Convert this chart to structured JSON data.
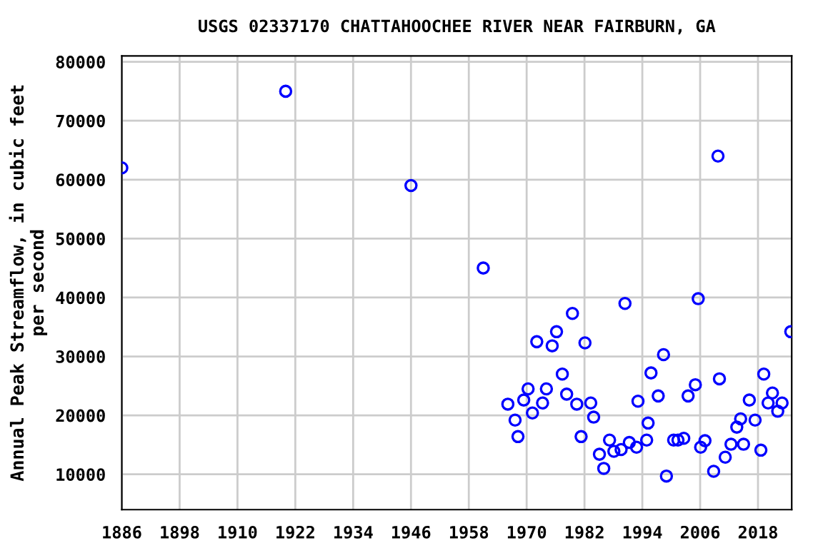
{
  "chart_data": {
    "type": "scatter",
    "title": "USGS 02337170 CHATTAHOOCHEE RIVER NEAR FAIRBURN, GA",
    "ylabel": "Annual Peak Streamflow, in cubic feet\nper second",
    "x": [
      1886,
      1920,
      1946,
      1961,
      1966.1,
      1967.6,
      1968.2,
      1969.4,
      1970.3,
      1971.2,
      1972.1,
      1973.3,
      1974.1,
      1975.3,
      1976.2,
      1977.4,
      1978.3,
      1979.5,
      1980.4,
      1981.3,
      1982.1,
      1983.3,
      1983.9,
      1985.1,
      1986.0,
      1987.2,
      1988.1,
      1989.6,
      1990.4,
      1991.3,
      1992.8,
      1993.1,
      1994.9,
      1995.2,
      1995.8,
      1997.3,
      1998.4,
      1999.0,
      2000.5,
      2001.4,
      2002.6,
      2003.5,
      2005.0,
      2005.6,
      2006.1,
      2007.0,
      2009.7,
      2008.8,
      2010.0,
      2011.2,
      2012.4,
      2013.6,
      2014.4,
      2015.0,
      2016.2,
      2017.4,
      2018.6,
      2019.2,
      2020.1,
      2021.0,
      2022.1,
      2023.0,
      2024.8
    ],
    "values": [
      62000,
      75000,
      59000,
      45000,
      21900,
      19200,
      16400,
      22600,
      24500,
      20400,
      32500,
      22100,
      24500,
      31800,
      34200,
      27000,
      23600,
      37300,
      21900,
      16400,
      32300,
      22100,
      19700,
      13400,
      11000,
      15800,
      13900,
      14200,
      39000,
      15400,
      14600,
      22400,
      15800,
      18700,
      27200,
      23300,
      30300,
      9700,
      15800,
      15800,
      16100,
      23300,
      25200,
      39800,
      14600,
      15700,
      64000,
      10500,
      26200,
      12900,
      15100,
      18000,
      19400,
      15100,
      22600,
      19200,
      14100,
      27000,
      22100,
      23800,
      20700,
      22100,
      34200
    ],
    "color": "#0000ff",
    "marker": "circle",
    "xlim": [
      1886,
      2025
    ],
    "xticks": [
      1886,
      1898,
      1910,
      1922,
      1934,
      1946,
      1958,
      1970,
      1982,
      1994,
      2006,
      2018
    ],
    "ylim": [
      4000,
      81000
    ],
    "yticks": [
      10000,
      20000,
      30000,
      40000,
      50000,
      60000,
      70000,
      80000
    ],
    "grid": true
  }
}
